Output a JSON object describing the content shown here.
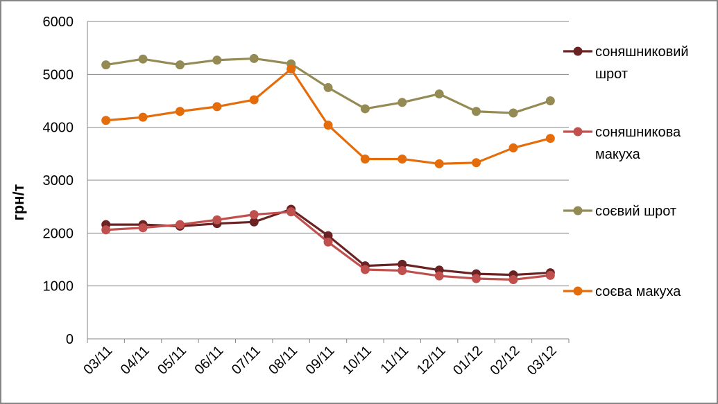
{
  "chart_data": {
    "type": "line",
    "title": "",
    "xlabel": "",
    "ylabel": "грн/т",
    "ylim": [
      0,
      6000
    ],
    "yticks": [
      0,
      1000,
      2000,
      3000,
      4000,
      5000,
      6000
    ],
    "grid": true,
    "legend_position": "right",
    "categories": [
      "03/11",
      "04/11",
      "05/11",
      "06/11",
      "07/11",
      "08/11",
      "09/11",
      "10/11",
      "11/11",
      "12/11",
      "01/12",
      "02/12",
      "03/12"
    ],
    "series": [
      {
        "name_lines": [
          "соняшниковий",
          "шрот"
        ],
        "color": "#6B2222",
        "values": [
          2160,
          2160,
          2130,
          2180,
          2210,
          2450,
          1950,
          1380,
          1410,
          1300,
          1230,
          1210,
          1250
        ]
      },
      {
        "name_lines": [
          "соняшникова",
          "макуха"
        ],
        "color": "#C0504D",
        "values": [
          2060,
          2100,
          2160,
          2250,
          2350,
          2400,
          1830,
          1310,
          1290,
          1190,
          1140,
          1120,
          1200
        ]
      },
      {
        "name_lines": [
          "соєвий шрот"
        ],
        "color": "#948A54",
        "values": [
          5180,
          5290,
          5180,
          5270,
          5300,
          5200,
          4750,
          4350,
          4470,
          4630,
          4300,
          4270,
          4500
        ]
      },
      {
        "name_lines": [
          "соєва макуха"
        ],
        "color": "#E46C0A",
        "values": [
          4130,
          4190,
          4300,
          4390,
          4520,
          5100,
          4040,
          3400,
          3400,
          3310,
          3330,
          3610,
          3790
        ]
      }
    ]
  }
}
